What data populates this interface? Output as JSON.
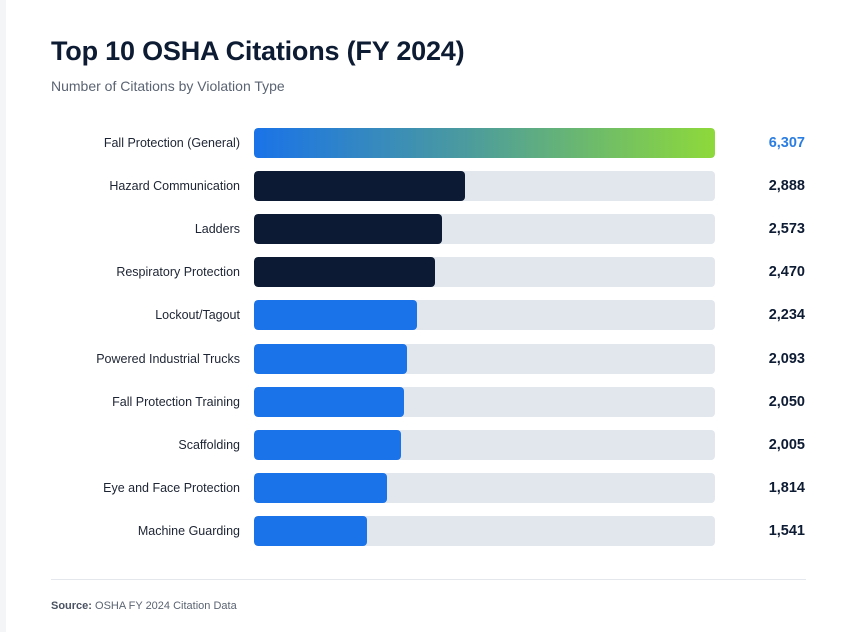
{
  "chart_data": {
    "type": "bar",
    "orientation": "horizontal",
    "title": "Top 10 OSHA Citations (FY 2024)",
    "subtitle": "Number of Citations by Violation Type",
    "categories": [
      "Fall Protection (General)",
      "Hazard Communication",
      "Ladders",
      "Respiratory Protection",
      "Lockout/Tagout",
      "Powered Industrial Trucks",
      "Fall Protection Training",
      "Scaffolding",
      "Eye and Face Protection",
      "Machine Guarding"
    ],
    "values": [
      6307,
      2888,
      2573,
      2470,
      2234,
      2093,
      2050,
      2005,
      1814,
      1541
    ],
    "value_labels": [
      "6,307",
      "2,888",
      "2,573",
      "2,470",
      "2,234",
      "2,093",
      "2,050",
      "2,005",
      "1,814",
      "1,541"
    ],
    "bar_styles": [
      "highlight",
      "dark",
      "dark",
      "dark",
      "blue",
      "blue",
      "blue",
      "blue",
      "blue",
      "blue"
    ],
    "xlim": [
      0,
      6307
    ],
    "xlabel": "",
    "ylabel": "",
    "grid": false,
    "legend": "none"
  },
  "colors": {
    "highlight_start": "#1a73e8",
    "highlight_end": "#8ed93a",
    "dark": "#0c1a33",
    "blue": "#1a73e8",
    "track": "#e2e7ee",
    "highlight_value": "#2a7de1"
  },
  "footer": {
    "source_label": "Source:",
    "source_text": "OSHA FY 2024 Citation Data"
  }
}
